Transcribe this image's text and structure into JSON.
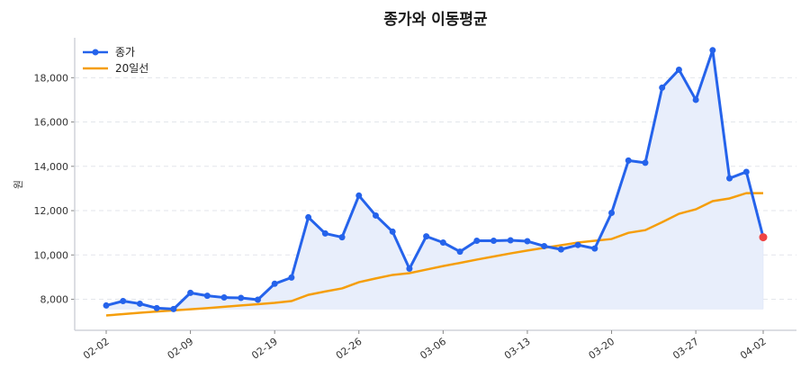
{
  "chart_data": {
    "type": "line",
    "title": "종가와 이동평균",
    "xlabel": "",
    "ylabel": "원",
    "ylim": [
      6600,
      19800
    ],
    "yticks": [
      8000,
      10000,
      12000,
      14000,
      16000,
      18000
    ],
    "ytick_labels": [
      "8,000",
      "10,000",
      "12,000",
      "14,000",
      "16,000",
      "18,000"
    ],
    "xticks": [
      {
        "index": 0,
        "label": "02-02"
      },
      {
        "index": 5,
        "label": "02-09"
      },
      {
        "index": 10,
        "label": "02-19"
      },
      {
        "index": 15,
        "label": "02-26"
      },
      {
        "index": 20,
        "label": "03-06"
      },
      {
        "index": 25,
        "label": "03-13"
      },
      {
        "index": 30,
        "label": "03-20"
      },
      {
        "index": 35,
        "label": "03-27"
      },
      {
        "index": 39,
        "label": "04-02"
      }
    ],
    "grid": "horizontal dashed",
    "legend_position": "top-left",
    "series": [
      {
        "name": "종가",
        "color": "#2563eb",
        "marker": "circle",
        "fill": "#e8eefb",
        "last_point_color": "#ef4444",
        "values": [
          7720,
          7920,
          7800,
          7600,
          7560,
          8290,
          8160,
          8080,
          8060,
          7980,
          8700,
          8980,
          11700,
          10970,
          10800,
          12680,
          11780,
          11050,
          9380,
          10840,
          10560,
          10150,
          10640,
          10640,
          10660,
          10620,
          10400,
          10250,
          10450,
          10290,
          11900,
          14260,
          14160,
          17550,
          18360,
          17000,
          19240,
          13460,
          13750,
          10800
        ]
      },
      {
        "name": "20일선",
        "color": "#f59e0b",
        "values": [
          7270,
          7330,
          7390,
          7450,
          7500,
          7550,
          7600,
          7660,
          7720,
          7780,
          7840,
          7920,
          8200,
          8350,
          8490,
          8770,
          8940,
          9100,
          9180,
          9340,
          9500,
          9640,
          9790,
          9930,
          10070,
          10200,
          10320,
          10440,
          10560,
          10640,
          10720,
          11000,
          11120,
          11480,
          11860,
          12060,
          12430,
          12550,
          12790,
          12790
        ]
      }
    ]
  }
}
